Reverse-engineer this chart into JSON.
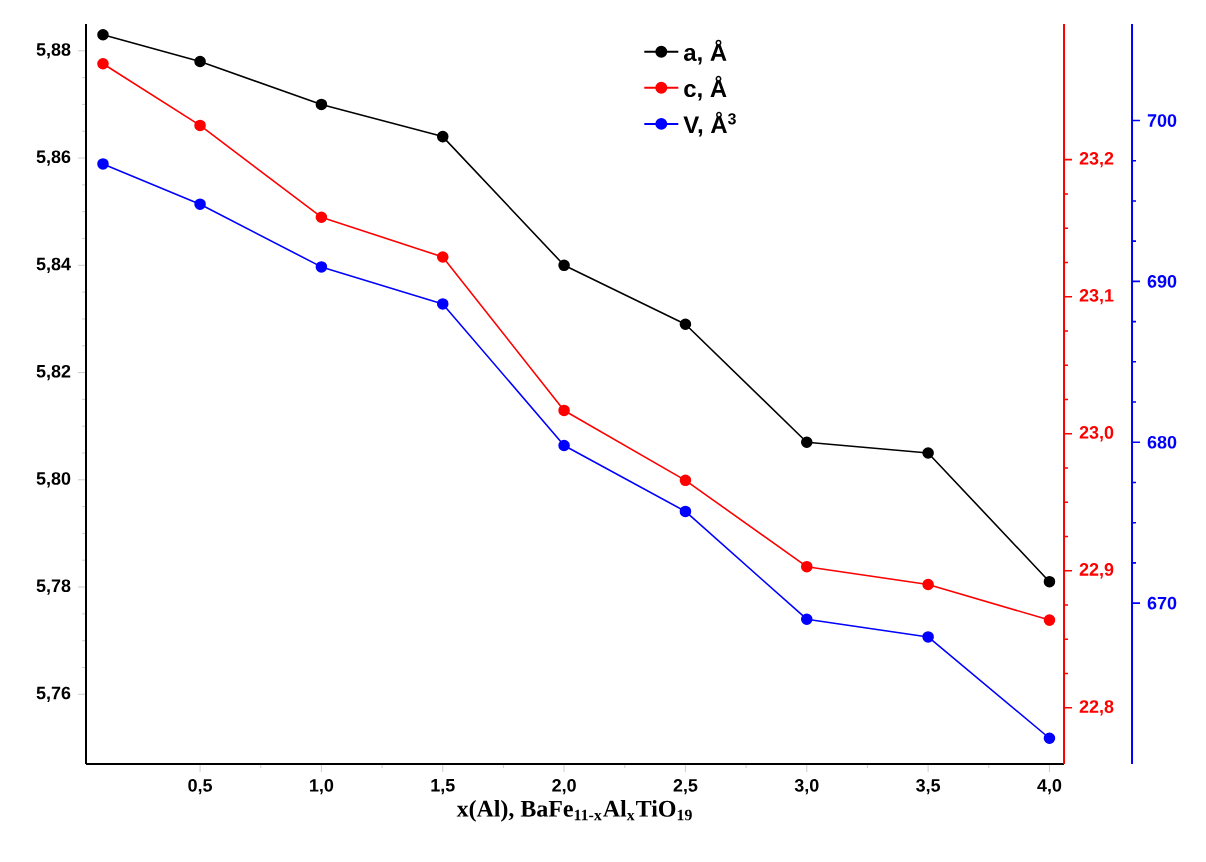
{
  "chart_data": {
    "type": "line",
    "xlabel": "x(Al), BaFe$_{11-x}$Al$_{x}$TiO$_{19}$",
    "x": [
      0.1,
      0.5,
      1.0,
      1.5,
      2.0,
      2.5,
      3.0,
      3.5,
      4.0
    ],
    "series": [
      {
        "name": "a, Å",
        "color": "#000000",
        "axis": "y",
        "values": [
          5.883,
          5.878,
          5.87,
          5.864,
          5.84,
          5.829,
          5.807,
          5.805,
          5.781
        ]
      },
      {
        "name": "c, Å",
        "color": "#ff0000",
        "axis": "y2",
        "values": [
          23.27,
          23.225,
          23.158,
          23.129,
          23.017,
          22.966,
          22.903,
          22.89,
          22.864
        ]
      },
      {
        "name": "V, Å$^{3}$",
        "color": "#0000ff",
        "axis": "y3",
        "values": [
          697.3,
          694.8,
          690.9,
          688.6,
          679.8,
          675.7,
          669.0,
          667.9,
          661.6
        ]
      }
    ],
    "xlim": [
      0.03,
      4.06
    ],
    "xticks": [
      {
        "value": 0.5,
        "label": "0,5"
      },
      {
        "value": 1.0,
        "label": "1,0"
      },
      {
        "value": 1.5,
        "label": "1,5"
      },
      {
        "value": 2.0,
        "label": "2,0"
      },
      {
        "value": 2.5,
        "label": "2,5"
      },
      {
        "value": 3.0,
        "label": "3,0"
      },
      {
        "value": 3.5,
        "label": "3,5"
      },
      {
        "value": 4.0,
        "label": "4,0"
      }
    ],
    "ylim": [
      5.747,
      5.885
    ],
    "yticks": [
      {
        "value": 5.76,
        "label": "5,76"
      },
      {
        "value": 5.78,
        "label": "5,78"
      },
      {
        "value": 5.8,
        "label": "5,80"
      },
      {
        "value": 5.82,
        "label": "5,82"
      },
      {
        "value": 5.84,
        "label": "5,84"
      },
      {
        "value": 5.86,
        "label": "5,86"
      },
      {
        "value": 5.88,
        "label": "5,88"
      }
    ],
    "y2lim": [
      22.759,
      23.299
    ],
    "y2ticks": [
      {
        "value": 22.8,
        "label": "22,8"
      },
      {
        "value": 22.9,
        "label": "22,9"
      },
      {
        "value": 23.0,
        "label": "23,0"
      },
      {
        "value": 23.1,
        "label": "23,1"
      },
      {
        "value": 23.2,
        "label": "23,2"
      }
    ],
    "y3lim": [
      660.0,
      706.0
    ],
    "y3ticks": [
      670,
      680,
      690,
      700
    ],
    "grid": false,
    "legend": "top",
    "marker": "circle",
    "line_style": "solid"
  }
}
